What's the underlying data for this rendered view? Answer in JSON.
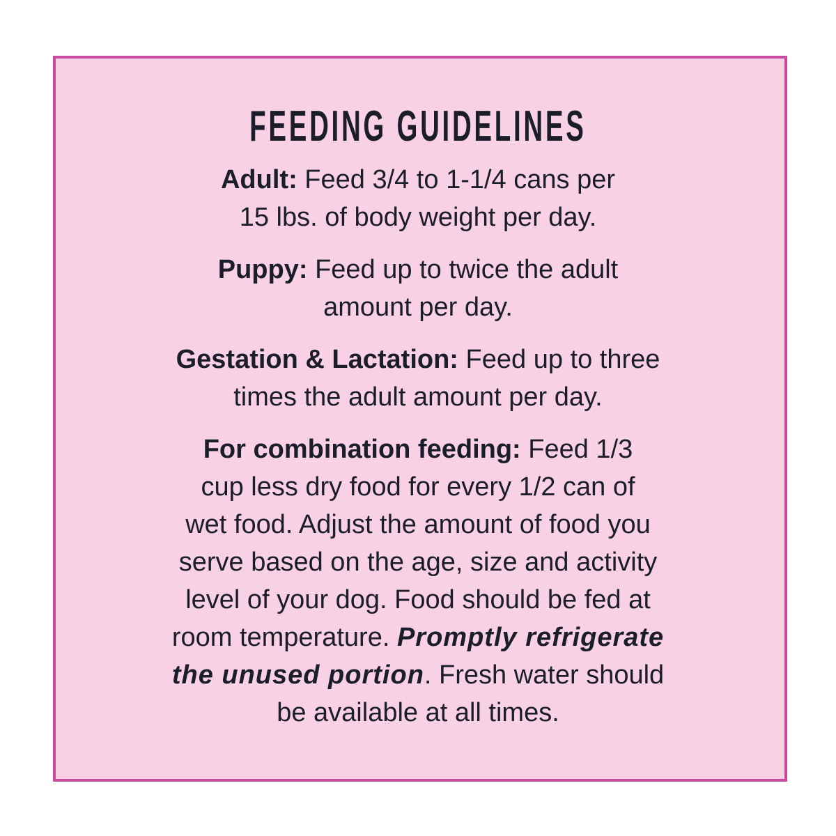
{
  "colors": {
    "background": "#ffffff",
    "panel_fill": "#f9d1e5",
    "panel_border": "#c74b9e",
    "text": "#1c1d2b"
  },
  "title": "FEEDING GUIDELINES",
  "adult": {
    "label": "Adult:",
    "line1": " Feed 3/4 to 1-1/4 cans per",
    "line2": "15 lbs. of body weight per day."
  },
  "puppy": {
    "label": "Puppy:",
    "line1": " Feed up to twice the adult",
    "line2": "amount per day."
  },
  "gestation": {
    "label": "Gestation & Lactation:",
    "line1": " Feed up to three",
    "line2": "times the adult amount per day."
  },
  "combination": {
    "label": "For combination feeding:",
    "line1": " Feed 1/3",
    "line2": "cup less dry food for every 1/2 can of",
    "line3": "wet food. Adjust the amount of food you",
    "line4": "serve based on the age, size and activity",
    "line5": "level of your dog. Food should be fed at",
    "line6a": "room temperature. ",
    "line6b": "Promptly refrigerate",
    "line7a": "the unused portion",
    "line7b": ". Fresh water should",
    "line8": "be available at all times."
  }
}
